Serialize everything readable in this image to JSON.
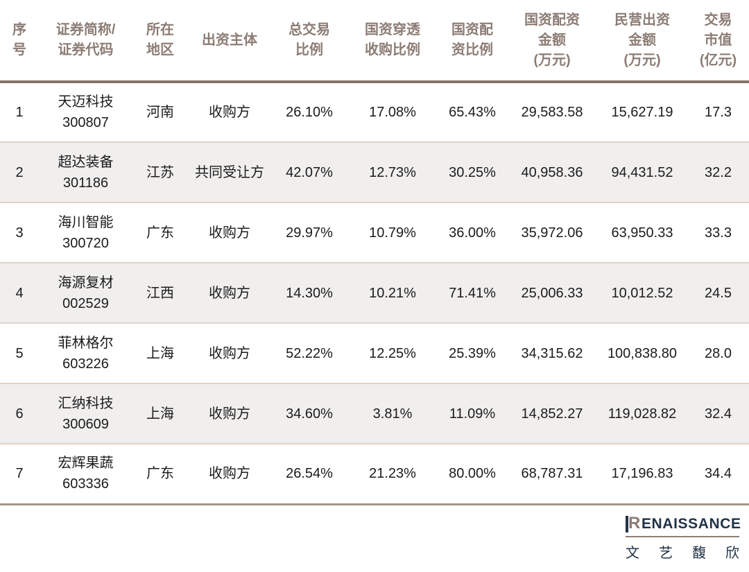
{
  "colors": {
    "header_text": "#8C7C74",
    "header_rule": "#85746A",
    "row_alt_bg": "#F0EFEE",
    "row_divider": "#DDD3CB",
    "table_bottom_rule": "#A3958A",
    "body_text": "#1B1B1B",
    "logo_navy": "#223246",
    "logo_taupe": "#8C7C74"
  },
  "table": {
    "headers": [
      "序\n号",
      "证券简称/\n证券代码",
      "所在\n地区",
      "出资主体",
      "总交易\n比例",
      "国资穿透\n收购比例",
      "国资配\n资比例",
      "国资配资\n金额\n(万元)",
      "民营出资\n金额\n(万元)",
      "交易\n市值\n(亿元)"
    ],
    "rows": [
      [
        "1",
        "天迈科技\n300807",
        "河南",
        "收购方",
        "26.10%",
        "17.08%",
        "65.43%",
        "29,583.58",
        "15,627.19",
        "17.3"
      ],
      [
        "2",
        "超达装备\n301186",
        "江苏",
        "共同受让方",
        "42.07%",
        "12.73%",
        "30.25%",
        "40,958.36",
        "94,431.52",
        "32.2"
      ],
      [
        "3",
        "海川智能\n300720",
        "广东",
        "收购方",
        "29.97%",
        "10.79%",
        "36.00%",
        "35,972.06",
        "63,950.33",
        "33.3"
      ],
      [
        "4",
        "海源复材\n002529",
        "江西",
        "收购方",
        "14.30%",
        "10.21%",
        "71.41%",
        "25,006.33",
        "10,012.52",
        "24.5"
      ],
      [
        "5",
        "菲林格尔\n603226",
        "上海",
        "收购方",
        "52.22%",
        "12.25%",
        "25.39%",
        "34,315.62",
        "100,838.80",
        "28.0"
      ],
      [
        "6",
        "汇纳科技\n300609",
        "上海",
        "收购方",
        "34.60%",
        "3.81%",
        "11.09%",
        "14,852.27",
        "119,028.82",
        "32.4"
      ],
      [
        "7",
        "宏辉果蔬\n603336",
        "广东",
        "收购方",
        "26.54%",
        "21.23%",
        "80.00%",
        "68,787.31",
        "17,196.83",
        "34.4"
      ]
    ]
  },
  "footer": {
    "brand_en_initial": "R",
    "brand_en_rest": "ENAISSANCE",
    "brand_cn": "文艺馥欣"
  },
  "chart_data": {
    "type": "table",
    "columns": [
      "序号",
      "证券简称/证券代码",
      "所在地区",
      "出资主体",
      "总交易比例",
      "国资穿透收购比例",
      "国资配资比例",
      "国资配资金额(万元)",
      "民营出资金额(万元)",
      "交易市值(亿元)"
    ],
    "rows": [
      {
        "seq": 1,
        "name": "天迈科技",
        "code": "300807",
        "region": "河南",
        "entity": "收购方",
        "total_deal_ratio_pct": 26.1,
        "soe_lookthrough_acq_ratio_pct": 17.08,
        "soe_funding_ratio_pct": 65.43,
        "soe_amount_wan": 29583.58,
        "private_amount_wan": 15627.19,
        "deal_value_yi": 17.3
      },
      {
        "seq": 2,
        "name": "超达装备",
        "code": "301186",
        "region": "江苏",
        "entity": "共同受让方",
        "total_deal_ratio_pct": 42.07,
        "soe_lookthrough_acq_ratio_pct": 12.73,
        "soe_funding_ratio_pct": 30.25,
        "soe_amount_wan": 40958.36,
        "private_amount_wan": 94431.52,
        "deal_value_yi": 32.2
      },
      {
        "seq": 3,
        "name": "海川智能",
        "code": "300720",
        "region": "广东",
        "entity": "收购方",
        "total_deal_ratio_pct": 29.97,
        "soe_lookthrough_acq_ratio_pct": 10.79,
        "soe_funding_ratio_pct": 36.0,
        "soe_amount_wan": 35972.06,
        "private_amount_wan": 63950.33,
        "deal_value_yi": 33.3
      },
      {
        "seq": 4,
        "name": "海源复材",
        "code": "002529",
        "region": "江西",
        "entity": "收购方",
        "total_deal_ratio_pct": 14.3,
        "soe_lookthrough_acq_ratio_pct": 10.21,
        "soe_funding_ratio_pct": 71.41,
        "soe_amount_wan": 25006.33,
        "private_amount_wan": 10012.52,
        "deal_value_yi": 24.5
      },
      {
        "seq": 5,
        "name": "菲林格尔",
        "code": "603226",
        "region": "上海",
        "entity": "收购方",
        "total_deal_ratio_pct": 52.22,
        "soe_lookthrough_acq_ratio_pct": 12.25,
        "soe_funding_ratio_pct": 25.39,
        "soe_amount_wan": 34315.62,
        "private_amount_wan": 100838.8,
        "deal_value_yi": 28.0
      },
      {
        "seq": 6,
        "name": "汇纳科技",
        "code": "300609",
        "region": "上海",
        "entity": "收购方",
        "total_deal_ratio_pct": 34.6,
        "soe_lookthrough_acq_ratio_pct": 3.81,
        "soe_funding_ratio_pct": 11.09,
        "soe_amount_wan": 14852.27,
        "private_amount_wan": 119028.82,
        "deal_value_yi": 32.4
      },
      {
        "seq": 7,
        "name": "宏辉果蔬",
        "code": "603336",
        "region": "广东",
        "entity": "收购方",
        "total_deal_ratio_pct": 26.54,
        "soe_lookthrough_acq_ratio_pct": 21.23,
        "soe_funding_ratio_pct": 80.0,
        "soe_amount_wan": 68787.31,
        "private_amount_wan": 17196.83,
        "deal_value_yi": 34.4
      }
    ],
    "layout": {
      "zebra_striping": true,
      "header_rule": "thick",
      "grid": "horizontal-only"
    }
  }
}
